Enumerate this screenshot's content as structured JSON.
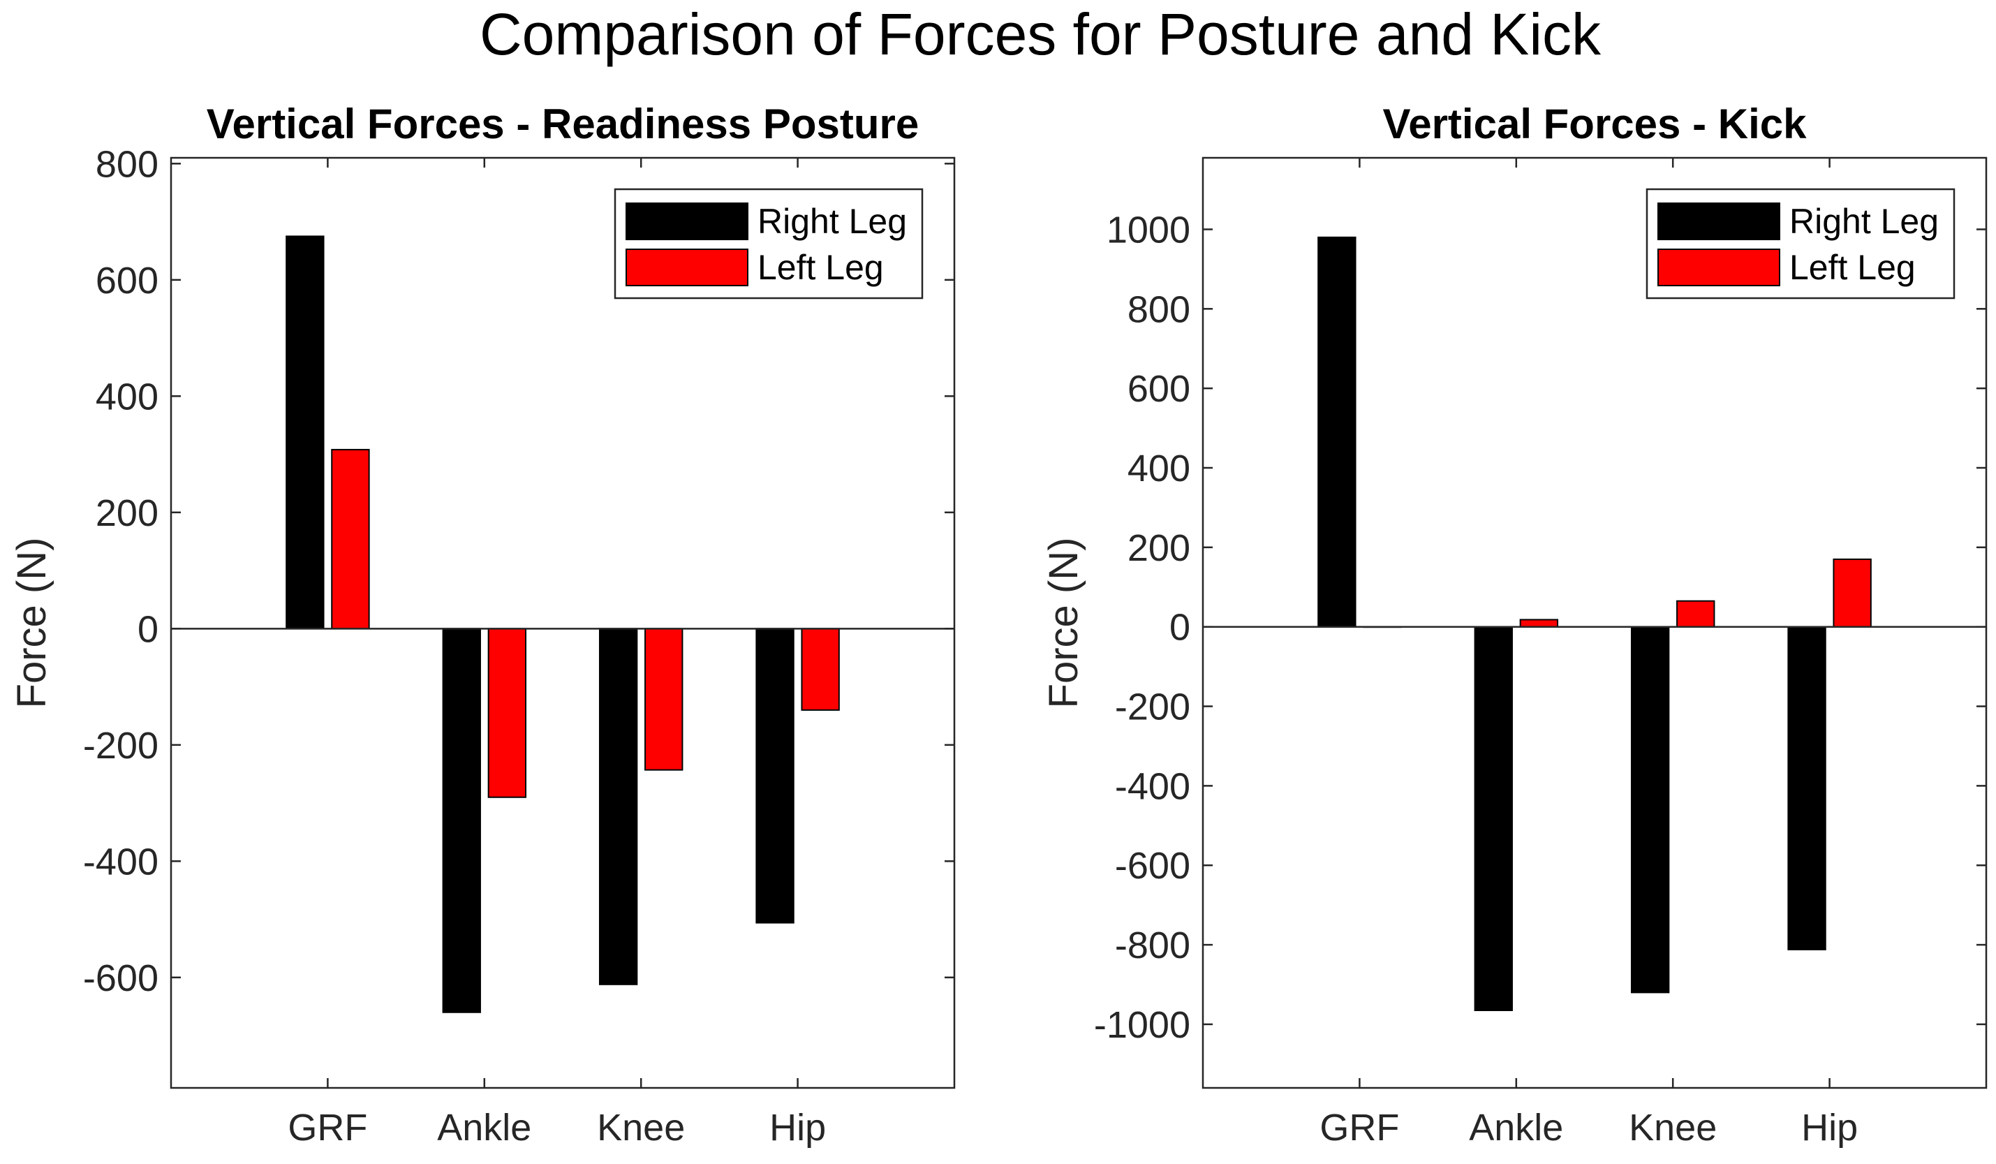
{
  "figure": {
    "title": "Comparison of Forces for Posture and Kick"
  },
  "chart_data": [
    {
      "type": "bar",
      "title": "Vertical Forces - Readiness Posture",
      "xlabel": "",
      "ylabel": "Force (N)",
      "categories": [
        "GRF",
        "Ankle",
        "Knee",
        "Hip"
      ],
      "series": [
        {
          "name": "Right Leg",
          "color": "#000000",
          "values": [
            675,
            -660,
            -612,
            -506
          ]
        },
        {
          "name": "Left Leg",
          "color": "#ff0000",
          "values": [
            308,
            -290,
            -243,
            -140
          ]
        }
      ],
      "ylim": [
        -790,
        810
      ],
      "yticks": [
        800,
        600,
        400,
        200,
        0,
        -200,
        -400,
        -600
      ],
      "ytick_labels": [
        "800",
        "600",
        "400",
        "200",
        "0",
        "-200",
        "-400",
        "-600"
      ],
      "legend_position": "top-right",
      "grid": false
    },
    {
      "type": "bar",
      "title": "Vertical Forces - Kick",
      "xlabel": "",
      "ylabel": "Force (N)",
      "categories": [
        "GRF",
        "Ankle",
        "Knee",
        "Hip"
      ],
      "series": [
        {
          "name": "Right Leg",
          "color": "#000000",
          "values": [
            980,
            -965,
            -920,
            -812
          ]
        },
        {
          "name": "Left Leg",
          "color": "#ff0000",
          "values": [
            0,
            18,
            65,
            170
          ]
        }
      ],
      "ylim": [
        -1160,
        1180
      ],
      "yticks": [
        1000,
        800,
        600,
        400,
        200,
        0,
        -200,
        -400,
        -600,
        -800,
        -1000
      ],
      "ytick_labels": [
        "1000",
        "800",
        "600",
        "400",
        "200",
        "0",
        "-200",
        "-400",
        "-600",
        "-800",
        "-1000"
      ],
      "legend_position": "top-right",
      "grid": false
    }
  ]
}
